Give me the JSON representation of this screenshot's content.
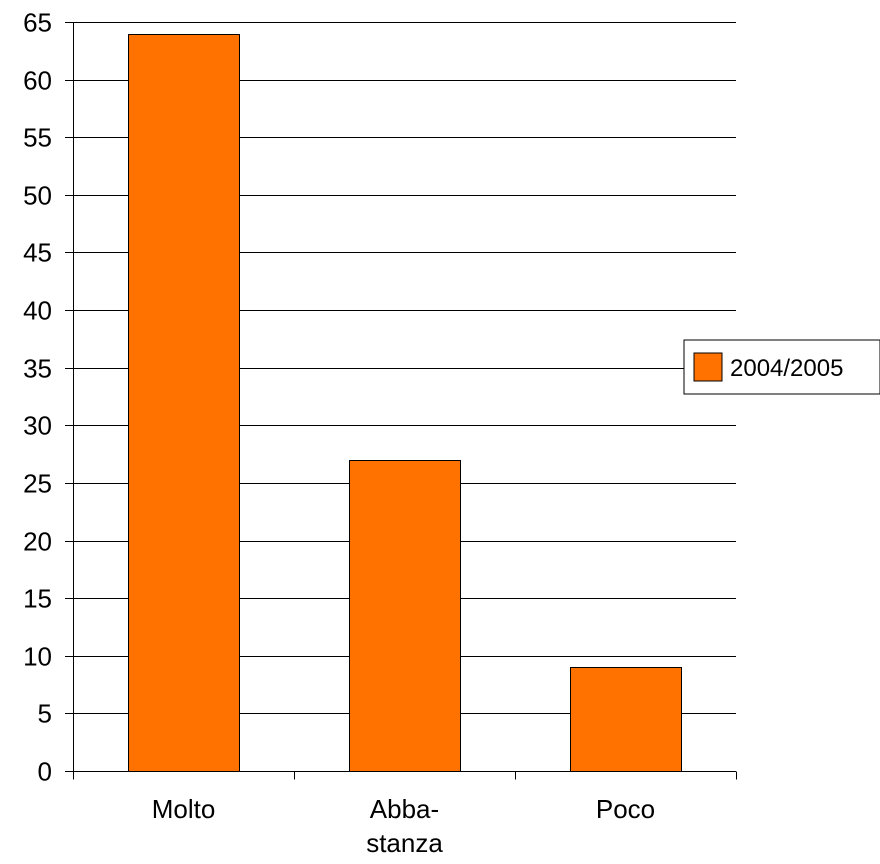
{
  "chart_data": {
    "type": "bar",
    "categories": [
      [
        "Molto"
      ],
      [
        "Abba-",
        "stanza"
      ],
      [
        "Poco"
      ]
    ],
    "series": [
      {
        "name": "2004/2005",
        "values": [
          64,
          27,
          9
        ],
        "color": "#FF7200"
      }
    ],
    "ylim": [
      0,
      65
    ],
    "yticks": [
      0,
      5,
      10,
      15,
      20,
      25,
      30,
      35,
      40,
      45,
      50,
      55,
      60,
      65
    ],
    "grid": true,
    "legend_position": "right"
  }
}
